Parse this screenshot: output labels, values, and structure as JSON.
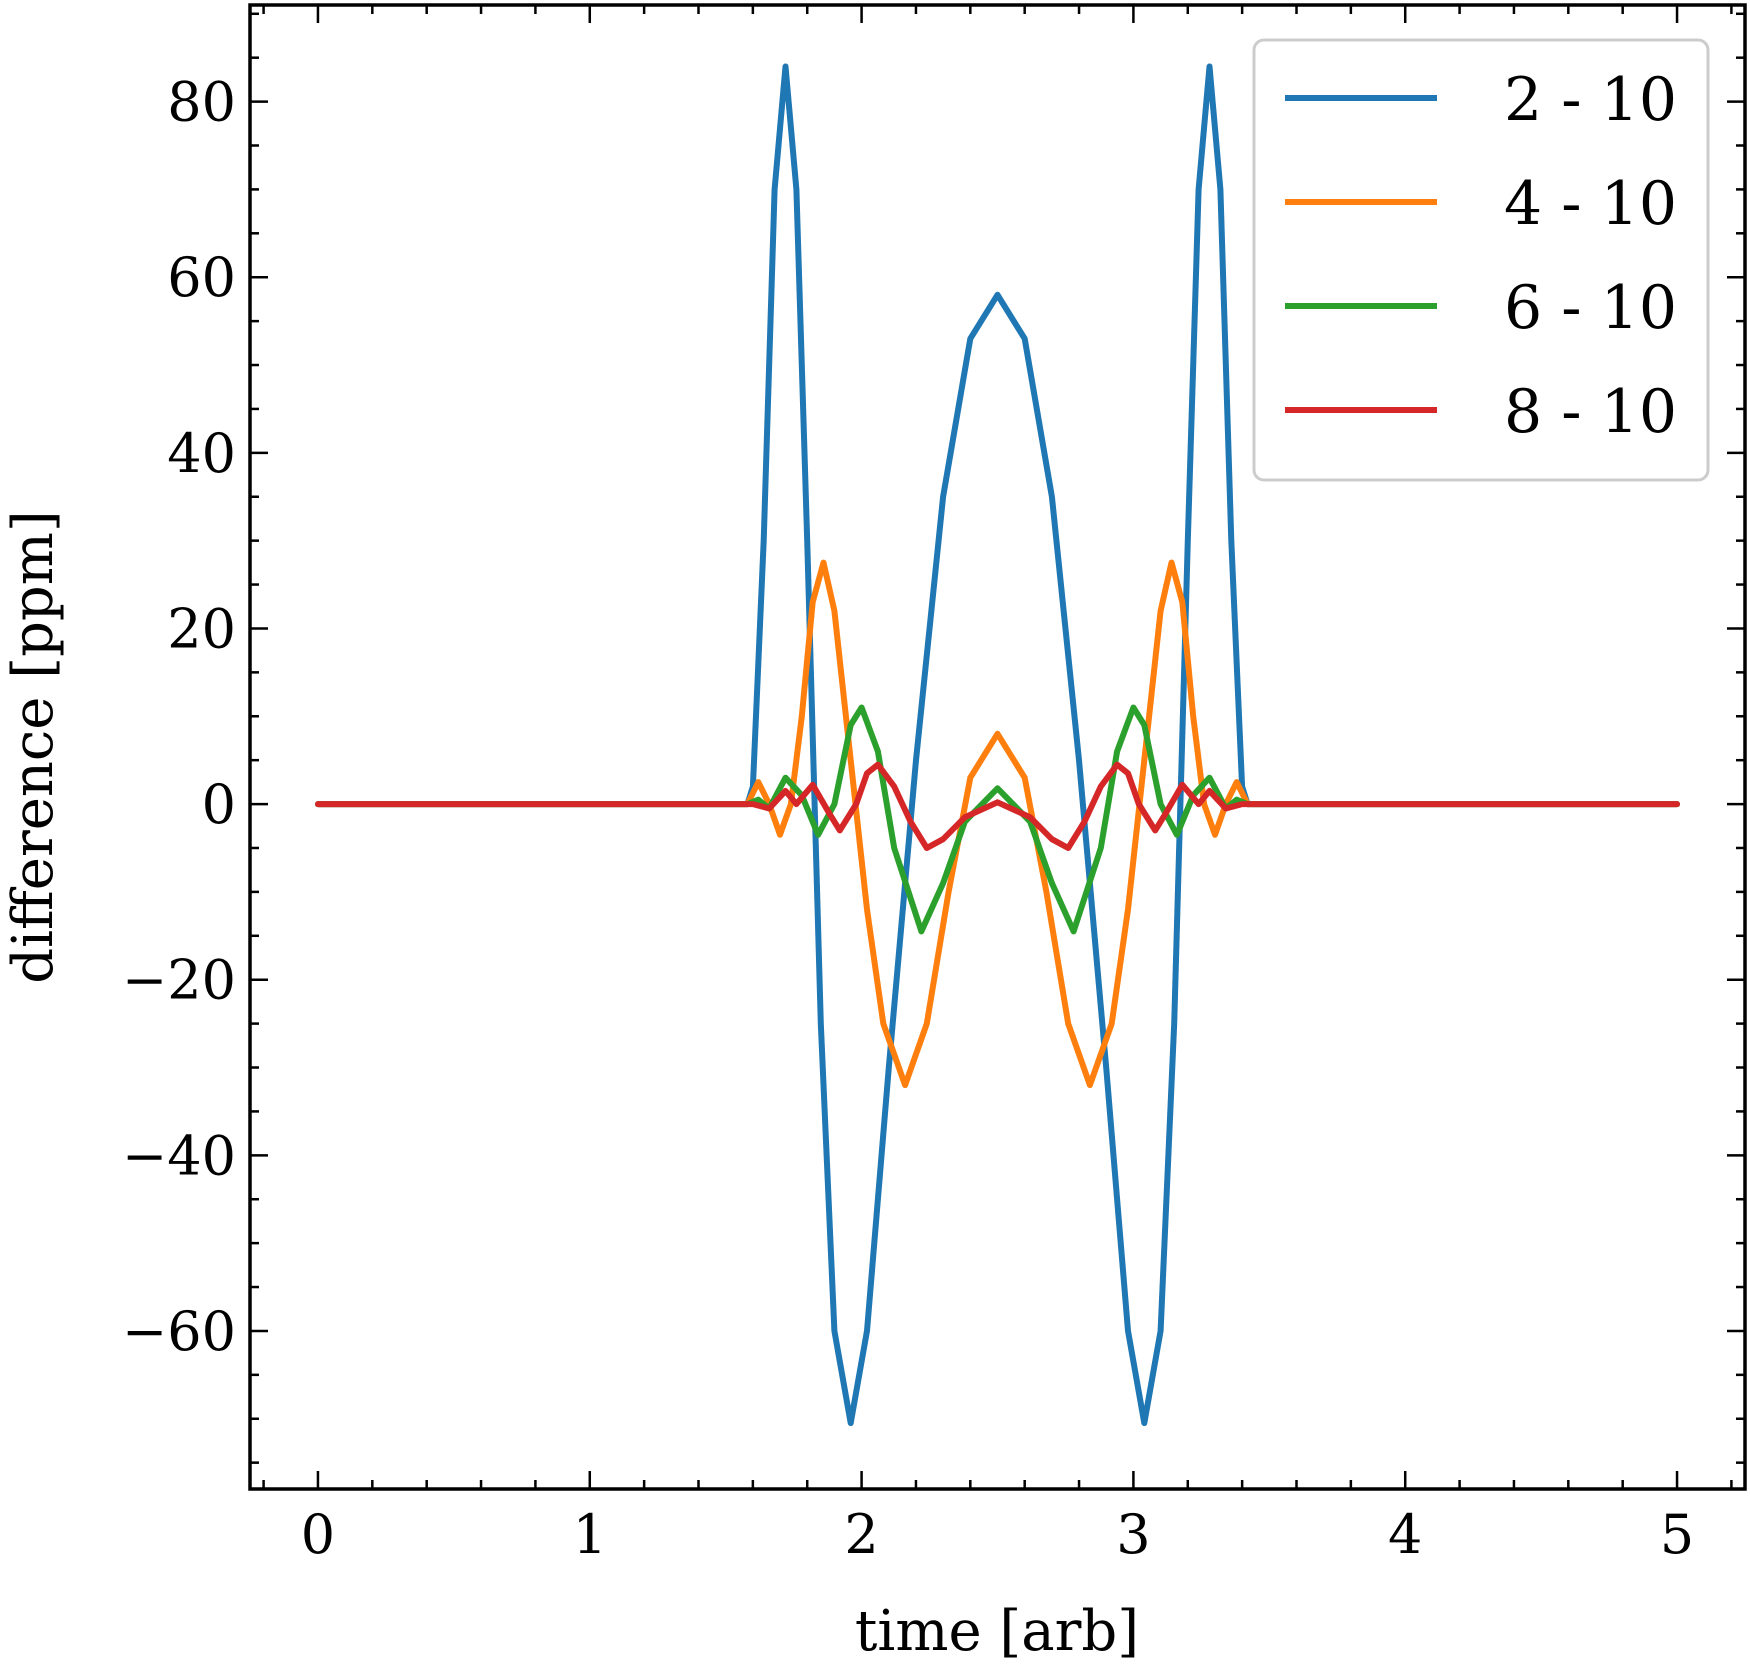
{
  "chart_data": {
    "type": "line",
    "xlabel": "time [arb]",
    "ylabel": "difference [ppm]",
    "xlim": [
      -0.25,
      5.25
    ],
    "ylim": [
      -78,
      91
    ],
    "xticks": [
      0,
      1,
      2,
      3,
      4,
      5
    ],
    "yticks": [
      -60,
      -40,
      -20,
      0,
      20,
      40,
      60,
      80
    ],
    "ytick_labels": [
      "−60",
      "−40",
      "−20",
      "0",
      "20",
      "40",
      "60",
      "80"
    ],
    "x_minor_step": 0.2,
    "y_minor_step": 5,
    "grid": false,
    "legend": {
      "placement": "top-right"
    },
    "series": [
      {
        "name": "2 - 10",
        "color": "#1f77b4",
        "points": [
          [
            0,
            0
          ],
          [
            1.58,
            0
          ],
          [
            1.6,
            2
          ],
          [
            1.64,
            30
          ],
          [
            1.68,
            70
          ],
          [
            1.72,
            84
          ],
          [
            1.76,
            70
          ],
          [
            1.8,
            30
          ],
          [
            1.85,
            -25
          ],
          [
            1.9,
            -60
          ],
          [
            1.96,
            -70.5
          ],
          [
            2.02,
            -60
          ],
          [
            2.1,
            -30
          ],
          [
            2.2,
            5
          ],
          [
            2.3,
            35
          ],
          [
            2.4,
            53
          ],
          [
            2.5,
            58
          ],
          [
            2.6,
            53
          ],
          [
            2.7,
            35
          ],
          [
            2.8,
            5
          ],
          [
            2.9,
            -30
          ],
          [
            2.98,
            -60
          ],
          [
            3.04,
            -70.5
          ],
          [
            3.1,
            -60
          ],
          [
            3.15,
            -25
          ],
          [
            3.2,
            30
          ],
          [
            3.24,
            70
          ],
          [
            3.28,
            84
          ],
          [
            3.32,
            70
          ],
          [
            3.36,
            30
          ],
          [
            3.4,
            2
          ],
          [
            3.42,
            0
          ],
          [
            5,
            0
          ]
        ]
      },
      {
        "name": "4 - 10",
        "color": "#ff7f0e",
        "points": [
          [
            0,
            0
          ],
          [
            1.58,
            0
          ],
          [
            1.62,
            2.5
          ],
          [
            1.66,
            0
          ],
          [
            1.7,
            -3.5
          ],
          [
            1.74,
            0
          ],
          [
            1.78,
            10
          ],
          [
            1.82,
            23
          ],
          [
            1.86,
            27.5
          ],
          [
            1.9,
            22
          ],
          [
            1.96,
            5
          ],
          [
            2.02,
            -12
          ],
          [
            2.08,
            -25
          ],
          [
            2.16,
            -32
          ],
          [
            2.24,
            -25
          ],
          [
            2.32,
            -10
          ],
          [
            2.4,
            3
          ],
          [
            2.5,
            8
          ],
          [
            2.6,
            3
          ],
          [
            2.68,
            -10
          ],
          [
            2.76,
            -25
          ],
          [
            2.84,
            -32
          ],
          [
            2.92,
            -25
          ],
          [
            2.98,
            -12
          ],
          [
            3.04,
            5
          ],
          [
            3.1,
            22
          ],
          [
            3.14,
            27.5
          ],
          [
            3.18,
            23
          ],
          [
            3.22,
            10
          ],
          [
            3.26,
            0
          ],
          [
            3.3,
            -3.5
          ],
          [
            3.34,
            0
          ],
          [
            3.38,
            2.5
          ],
          [
            3.42,
            0
          ],
          [
            5,
            0
          ]
        ]
      },
      {
        "name": "6 - 10",
        "color": "#2ca02c",
        "points": [
          [
            0,
            0
          ],
          [
            1.58,
            0
          ],
          [
            1.62,
            0.5
          ],
          [
            1.66,
            -0.5
          ],
          [
            1.72,
            3
          ],
          [
            1.78,
            1
          ],
          [
            1.84,
            -3.5
          ],
          [
            1.9,
            0
          ],
          [
            1.96,
            9
          ],
          [
            2.0,
            11
          ],
          [
            2.06,
            6
          ],
          [
            2.12,
            -5
          ],
          [
            2.22,
            -14.5
          ],
          [
            2.3,
            -9
          ],
          [
            2.38,
            -2
          ],
          [
            2.5,
            1.8
          ],
          [
            2.62,
            -2
          ],
          [
            2.7,
            -9
          ],
          [
            2.78,
            -14.5
          ],
          [
            2.88,
            -5
          ],
          [
            2.94,
            6
          ],
          [
            3.0,
            11
          ],
          [
            3.04,
            9
          ],
          [
            3.1,
            0
          ],
          [
            3.16,
            -3.5
          ],
          [
            3.22,
            1
          ],
          [
            3.28,
            3
          ],
          [
            3.34,
            -0.5
          ],
          [
            3.38,
            0.5
          ],
          [
            3.42,
            0
          ],
          [
            5,
            0
          ]
        ]
      },
      {
        "name": "8 - 10",
        "color": "#d62728",
        "points": [
          [
            0,
            0
          ],
          [
            1.6,
            0
          ],
          [
            1.66,
            -0.5
          ],
          [
            1.72,
            1.5
          ],
          [
            1.76,
            0
          ],
          [
            1.82,
            2.2
          ],
          [
            1.88,
            -1
          ],
          [
            1.92,
            -3
          ],
          [
            1.98,
            0
          ],
          [
            2.02,
            3.5
          ],
          [
            2.06,
            4.5
          ],
          [
            2.12,
            2
          ],
          [
            2.18,
            -2
          ],
          [
            2.24,
            -5
          ],
          [
            2.3,
            -4
          ],
          [
            2.38,
            -1.5
          ],
          [
            2.5,
            0.2
          ],
          [
            2.62,
            -1.5
          ],
          [
            2.7,
            -4
          ],
          [
            2.76,
            -5
          ],
          [
            2.82,
            -2
          ],
          [
            2.88,
            2
          ],
          [
            2.94,
            4.5
          ],
          [
            2.98,
            3.5
          ],
          [
            3.02,
            0
          ],
          [
            3.08,
            -3
          ],
          [
            3.12,
            -1
          ],
          [
            3.18,
            2.2
          ],
          [
            3.24,
            0
          ],
          [
            3.28,
            1.5
          ],
          [
            3.34,
            -0.5
          ],
          [
            3.4,
            0
          ],
          [
            5,
            0
          ]
        ]
      }
    ]
  }
}
